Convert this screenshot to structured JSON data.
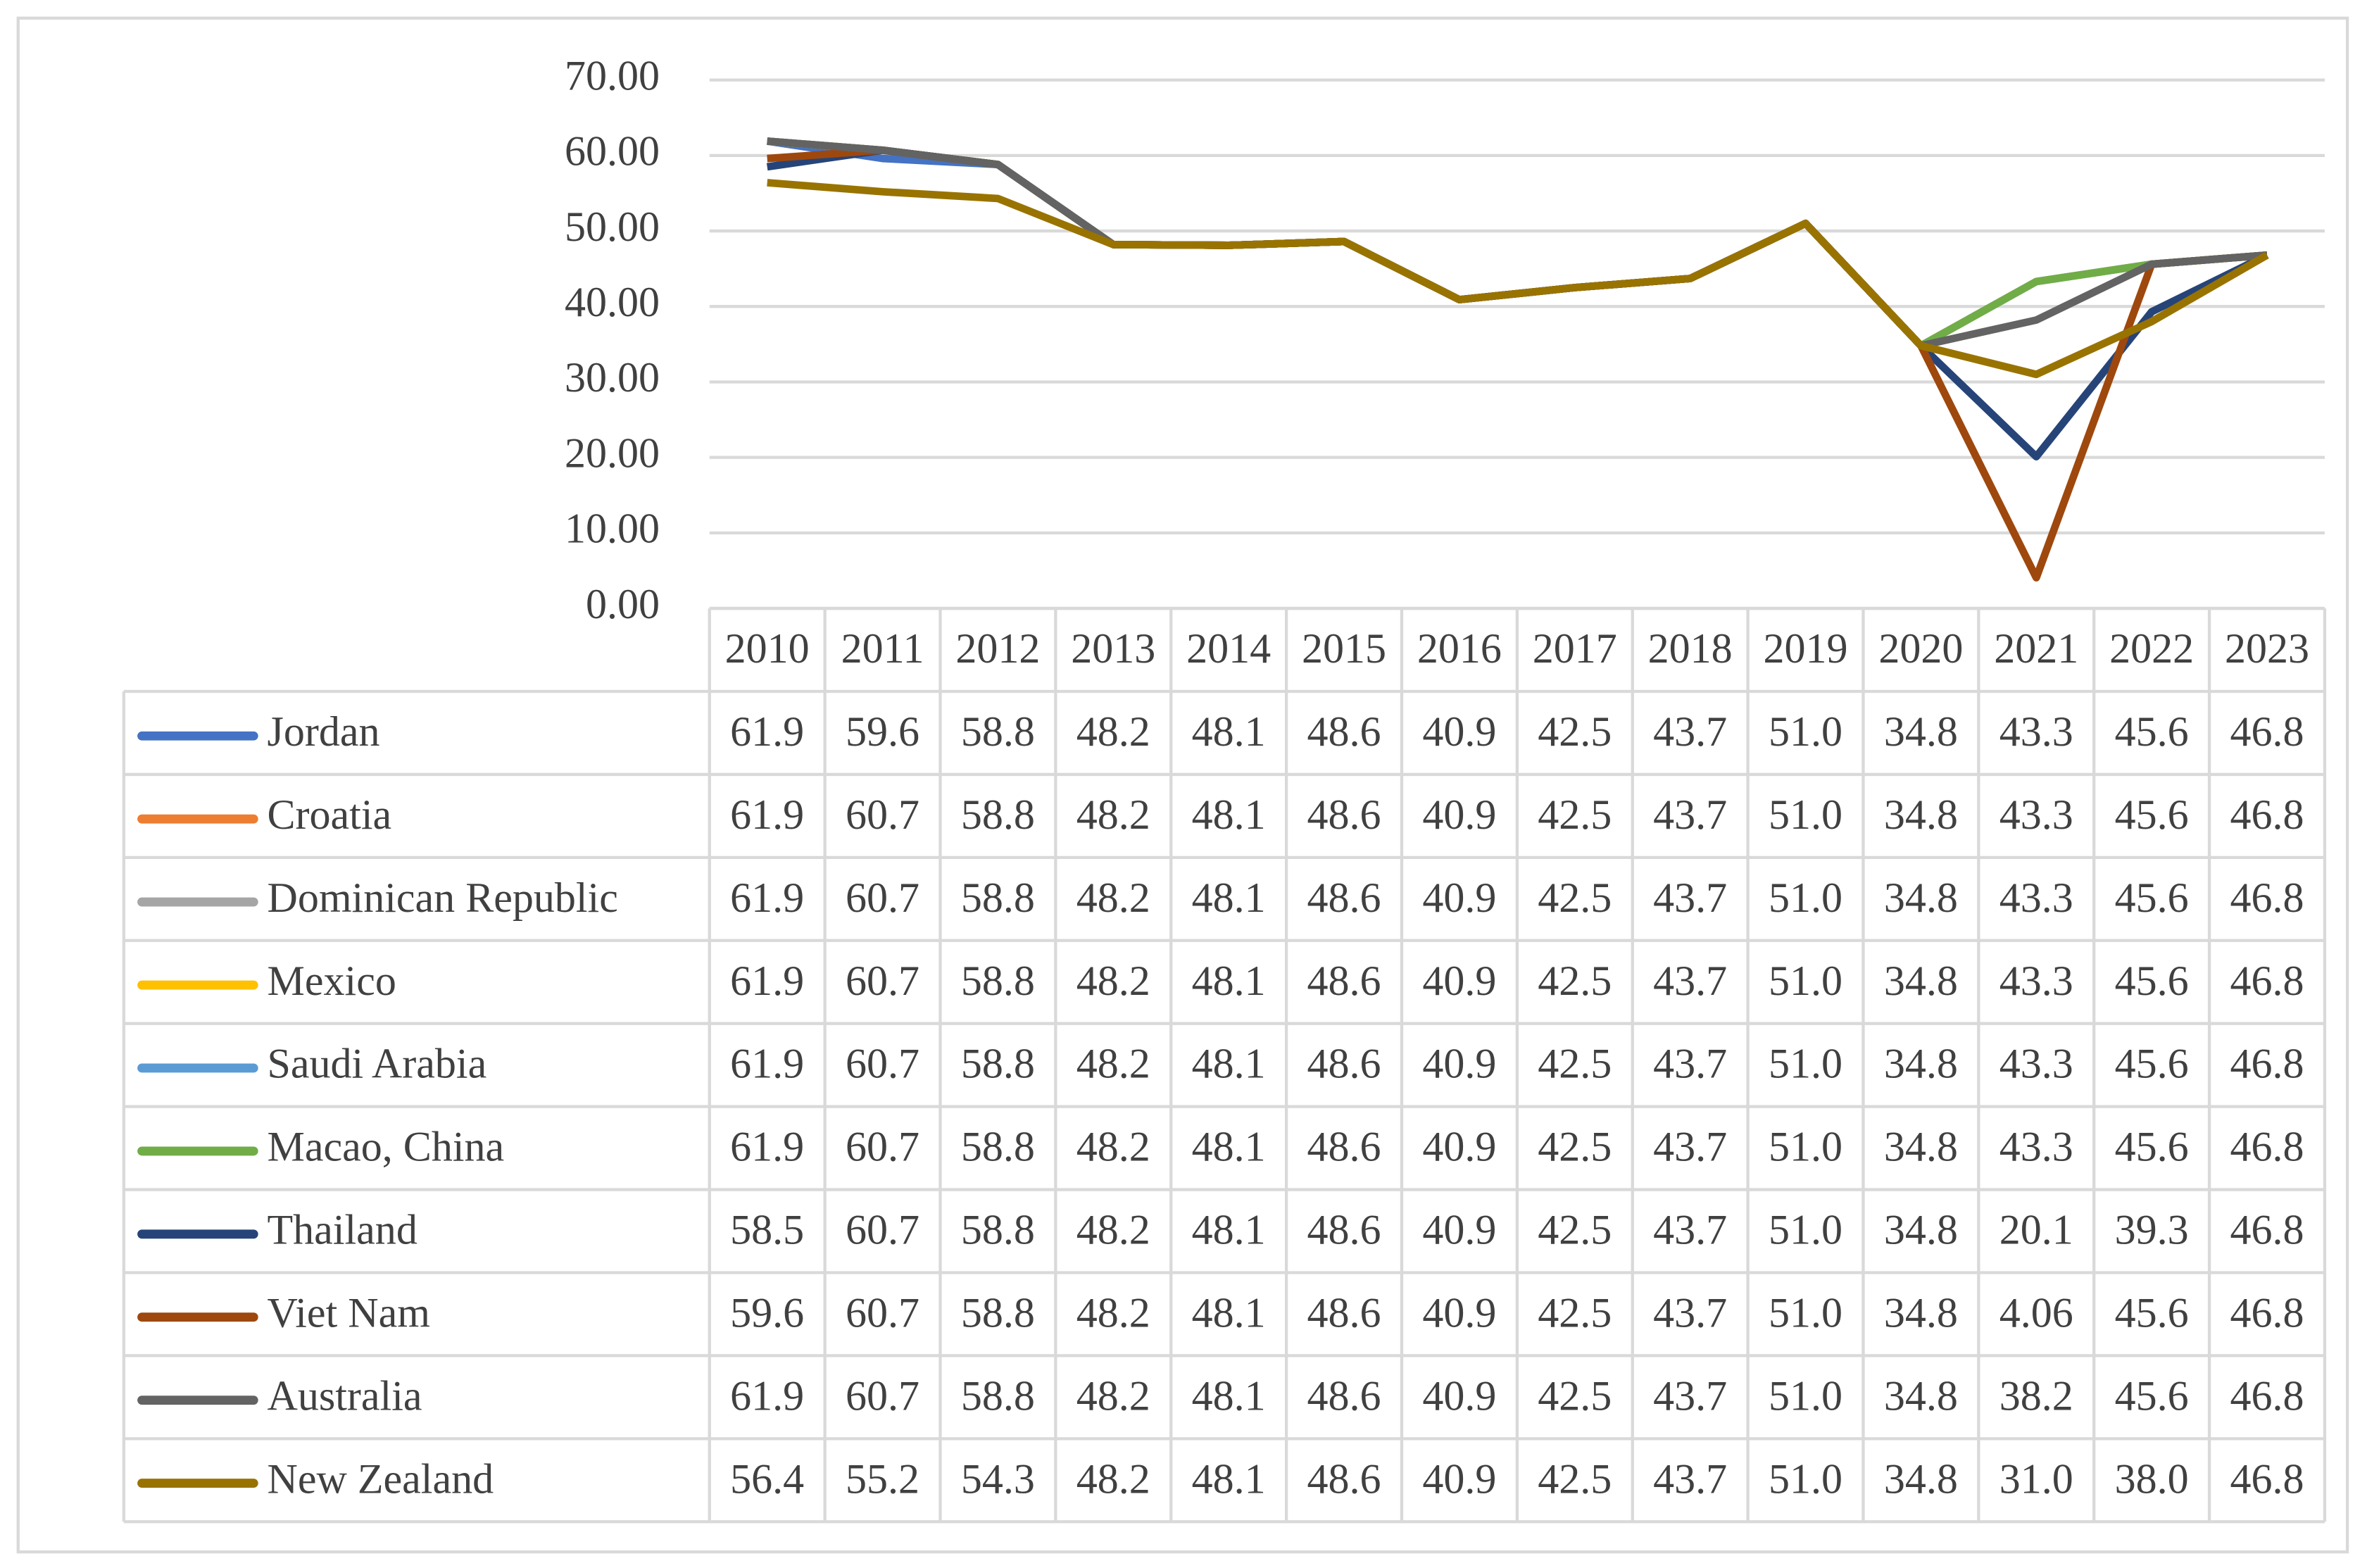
{
  "chart_data": {
    "type": "line",
    "categories": [
      "2010",
      "2011",
      "2012",
      "2013",
      "2014",
      "2015",
      "2016",
      "2017",
      "2018",
      "2019",
      "2020",
      "2021",
      "2022",
      "2023"
    ],
    "ylim": [
      0,
      70
    ],
    "yticks": [
      {
        "value": 0,
        "label": "0.00"
      },
      {
        "value": 10,
        "label": "10.00"
      },
      {
        "value": 20,
        "label": "20.00"
      },
      {
        "value": 30,
        "label": "30.00"
      },
      {
        "value": 40,
        "label": "40.00"
      },
      {
        "value": 50,
        "label": "50.00"
      },
      {
        "value": 60,
        "label": "60.00"
      },
      {
        "value": 70,
        "label": "70.00"
      }
    ],
    "grid": true,
    "series": [
      {
        "name": "Jordan",
        "color": "#4472c4",
        "values": [
          61.9,
          59.6,
          58.8,
          48.2,
          48.1,
          48.6,
          40.9,
          42.5,
          43.7,
          51.0,
          34.8,
          43.3,
          45.6,
          46.8
        ],
        "value_labels": [
          "61.9",
          "59.6",
          "58.8",
          "48.2",
          "48.1",
          "48.6",
          "40.9",
          "42.5",
          "43.7",
          "51.0",
          "34.8",
          "43.3",
          "45.6",
          "46.8"
        ]
      },
      {
        "name": "Croatia",
        "color": "#ed7d31",
        "values": [
          61.9,
          60.7,
          58.8,
          48.2,
          48.1,
          48.6,
          40.9,
          42.5,
          43.7,
          51.0,
          34.8,
          43.3,
          45.6,
          46.8
        ],
        "value_labels": [
          "61.9",
          "60.7",
          "58.8",
          "48.2",
          "48.1",
          "48.6",
          "40.9",
          "42.5",
          "43.7",
          "51.0",
          "34.8",
          "43.3",
          "45.6",
          "46.8"
        ]
      },
      {
        "name": "Dominican Republic",
        "color": "#a5a5a5",
        "values": [
          61.9,
          60.7,
          58.8,
          48.2,
          48.1,
          48.6,
          40.9,
          42.5,
          43.7,
          51.0,
          34.8,
          43.3,
          45.6,
          46.8
        ],
        "value_labels": [
          "61.9",
          "60.7",
          "58.8",
          "48.2",
          "48.1",
          "48.6",
          "40.9",
          "42.5",
          "43.7",
          "51.0",
          "34.8",
          "43.3",
          "45.6",
          "46.8"
        ]
      },
      {
        "name": "Mexico",
        "color": "#ffc000",
        "values": [
          61.9,
          60.7,
          58.8,
          48.2,
          48.1,
          48.6,
          40.9,
          42.5,
          43.7,
          51.0,
          34.8,
          43.3,
          45.6,
          46.8
        ],
        "value_labels": [
          "61.9",
          "60.7",
          "58.8",
          "48.2",
          "48.1",
          "48.6",
          "40.9",
          "42.5",
          "43.7",
          "51.0",
          "34.8",
          "43.3",
          "45.6",
          "46.8"
        ]
      },
      {
        "name": "Saudi Arabia",
        "color": "#5b9bd5",
        "values": [
          61.9,
          60.7,
          58.8,
          48.2,
          48.1,
          48.6,
          40.9,
          42.5,
          43.7,
          51.0,
          34.8,
          43.3,
          45.6,
          46.8
        ],
        "value_labels": [
          "61.9",
          "60.7",
          "58.8",
          "48.2",
          "48.1",
          "48.6",
          "40.9",
          "42.5",
          "43.7",
          "51.0",
          "34.8",
          "43.3",
          "45.6",
          "46.8"
        ]
      },
      {
        "name": "Macao, China",
        "color": "#70ad47",
        "values": [
          61.9,
          60.7,
          58.8,
          48.2,
          48.1,
          48.6,
          40.9,
          42.5,
          43.7,
          51.0,
          34.8,
          43.3,
          45.6,
          46.8
        ],
        "value_labels": [
          "61.9",
          "60.7",
          "58.8",
          "48.2",
          "48.1",
          "48.6",
          "40.9",
          "42.5",
          "43.7",
          "51.0",
          "34.8",
          "43.3",
          "45.6",
          "46.8"
        ]
      },
      {
        "name": "Thailand",
        "color": "#264478",
        "values": [
          58.5,
          60.7,
          58.8,
          48.2,
          48.1,
          48.6,
          40.9,
          42.5,
          43.7,
          51.0,
          34.8,
          20.1,
          39.3,
          46.8
        ],
        "value_labels": [
          "58.5",
          "60.7",
          "58.8",
          "48.2",
          "48.1",
          "48.6",
          "40.9",
          "42.5",
          "43.7",
          "51.0",
          "34.8",
          "20.1",
          "39.3",
          "46.8"
        ]
      },
      {
        "name": "Viet Nam",
        "color": "#9e480e",
        "values": [
          59.6,
          60.7,
          58.8,
          48.2,
          48.1,
          48.6,
          40.9,
          42.5,
          43.7,
          51.0,
          34.8,
          4.06,
          45.6,
          46.8
        ],
        "value_labels": [
          "59.6",
          "60.7",
          "58.8",
          "48.2",
          "48.1",
          "48.6",
          "40.9",
          "42.5",
          "43.7",
          "51.0",
          "34.8",
          "4.06",
          "45.6",
          "46.8"
        ]
      },
      {
        "name": "Australia",
        "color": "#636363",
        "values": [
          61.9,
          60.7,
          58.8,
          48.2,
          48.1,
          48.6,
          40.9,
          42.5,
          43.7,
          51.0,
          34.8,
          38.2,
          45.6,
          46.8
        ],
        "value_labels": [
          "61.9",
          "60.7",
          "58.8",
          "48.2",
          "48.1",
          "48.6",
          "40.9",
          "42.5",
          "43.7",
          "51.0",
          "34.8",
          "38.2",
          "45.6",
          "46.8"
        ]
      },
      {
        "name": "New Zealand",
        "color": "#997300",
        "values": [
          56.4,
          55.2,
          54.3,
          48.2,
          48.1,
          48.6,
          40.9,
          42.5,
          43.7,
          51.0,
          34.8,
          31.0,
          38.0,
          46.8
        ],
        "value_labels": [
          "56.4",
          "55.2",
          "54.3",
          "48.2",
          "48.1",
          "48.6",
          "40.9",
          "42.5",
          "43.7",
          "51.0",
          "34.8",
          "31.0",
          "38.0",
          "46.8"
        ]
      }
    ]
  }
}
